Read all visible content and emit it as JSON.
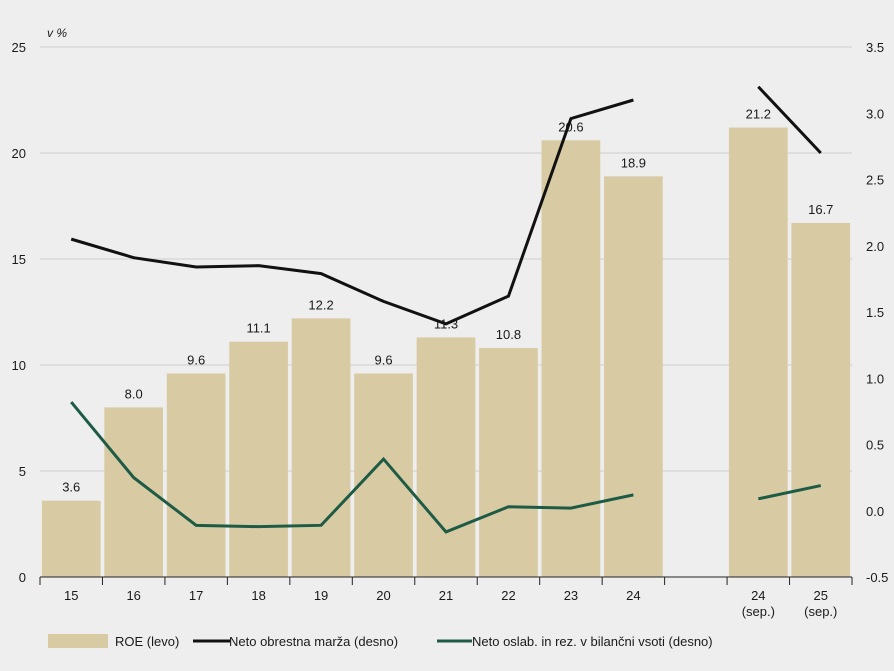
{
  "chart_data": {
    "type": "bar",
    "unit_label": "v %",
    "categories": [
      "15",
      "16",
      "17",
      "18",
      "19",
      "20",
      "21",
      "22",
      "23",
      "24",
      "",
      "24\n(sep.)",
      "25\n(sep.)"
    ],
    "left_axis": {
      "ylim": [
        0,
        25
      ],
      "ticks": [
        "0",
        "5",
        "10",
        "15",
        "20",
        "25"
      ]
    },
    "right_axis": {
      "ylim": [
        -0.5,
        3.5
      ],
      "ticks": [
        "-0.5",
        "0.0",
        "0.5",
        "1.0",
        "1.5",
        "2.0",
        "2.5",
        "3.0",
        "3.5"
      ]
    },
    "series": [
      {
        "name": "ROE (levo)",
        "type": "bar",
        "axis": "left",
        "color": "#d8cba4",
        "values": [
          3.6,
          8.0,
          9.6,
          11.1,
          12.2,
          9.6,
          11.3,
          10.8,
          20.6,
          18.9,
          null,
          21.2,
          16.7
        ],
        "labels": [
          "3.6",
          "8.0",
          "9.6",
          "11.1",
          "12.2",
          "9.6",
          "11.3",
          "10.8",
          "20.6",
          "18.9",
          "",
          "21.2",
          "16.7"
        ]
      },
      {
        "name": "Neto obrestna marža (desno)",
        "type": "line",
        "axis": "right",
        "color": "#111111",
        "values": [
          2.05,
          1.91,
          1.84,
          1.85,
          1.79,
          1.58,
          1.41,
          1.62,
          2.96,
          3.1,
          null,
          3.2,
          2.7
        ]
      },
      {
        "name": "Neto oslab. in rez. v bilančni vsoti (desno)",
        "type": "line",
        "axis": "right",
        "color": "#1e5b45",
        "values": [
          0.82,
          0.25,
          -0.11,
          -0.12,
          -0.11,
          0.39,
          -0.16,
          0.03,
          0.02,
          0.12,
          null,
          0.09,
          0.19
        ]
      }
    ],
    "grid": true,
    "legend_position": "bottom"
  }
}
